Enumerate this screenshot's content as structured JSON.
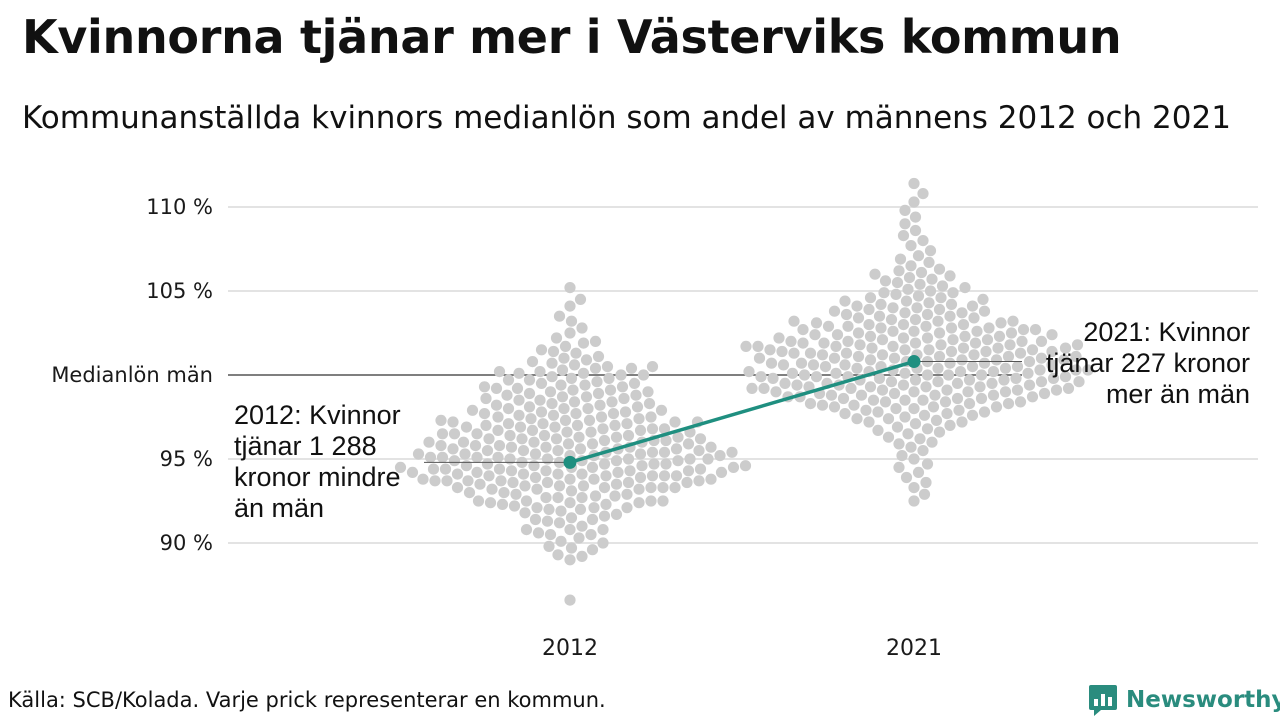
{
  "title": "Kvinnorna tjänar mer i Västerviks kommun",
  "subtitle": "Kommunanställda kvinnors medianlön som andel av männens 2012 och 2021",
  "source": "Källa: SCB/Kolada. Varje prick representerar en kommun.",
  "brand": {
    "name": "Newsworthy",
    "icon": "newsworthy-logo-icon",
    "color": "#2a8c7e"
  },
  "chart_data": {
    "type": "scatter",
    "subtype": "beeswarm",
    "categories": [
      "2012",
      "2021"
    ],
    "y_ticks": [
      {
        "value": 90,
        "label": "90 %"
      },
      {
        "value": 95,
        "label": "95 %"
      },
      {
        "value": 100,
        "label": "Medianlön män"
      },
      {
        "value": 105,
        "label": "105 %"
      },
      {
        "value": 110,
        "label": "110 %"
      }
    ],
    "ylim": [
      85.4,
      111.6
    ],
    "grid": true,
    "reference_line": {
      "value": 100,
      "label": "Medianlön män"
    },
    "dot_color": "#cccccc",
    "highlight_color": "#1f8f80",
    "highlight": [
      {
        "category": "2012",
        "value": 94.8
      },
      {
        "category": "2021",
        "value": 100.8
      }
    ],
    "annotations": [
      {
        "category": "2012",
        "lines": [
          "2012: Kvinnor",
          "tjänar 1 288",
          "kronor mindre",
          "än män"
        ]
      },
      {
        "category": "2021",
        "lines": [
          "2021: Kvinnor",
          "tjänar 227 kronor",
          "mer än män"
        ]
      }
    ],
    "series": [
      {
        "category": "2012",
        "values": [
          86.6,
          89.0,
          89.2,
          89.3,
          89.6,
          89.7,
          89.8,
          90.0,
          90.1,
          90.3,
          90.5,
          90.5,
          90.6,
          90.8,
          90.8,
          90.8,
          91.0,
          91.2,
          91.3,
          91.4,
          91.4,
          91.5,
          91.6,
          91.7,
          91.8,
          91.9,
          92.0,
          92.0,
          92.1,
          92.1,
          92.1,
          92.2,
          92.3,
          92.3,
          92.4,
          92.4,
          92.4,
          92.5,
          92.5,
          92.5,
          92.5,
          92.7,
          92.7,
          92.7,
          92.8,
          92.8,
          92.9,
          92.9,
          93.0,
          93.0,
          93.1,
          93.2,
          93.2,
          93.2,
          93.3,
          93.3,
          93.3,
          93.3,
          93.3,
          93.4,
          93.4,
          93.4,
          93.5,
          93.5,
          93.6,
          93.6,
          93.6,
          93.6,
          93.7,
          93.7,
          93.7,
          93.7,
          93.7,
          93.8,
          93.8,
          93.8,
          93.8,
          93.9,
          93.9,
          94.0,
          94.0,
          94.0,
          94.0,
          94.0,
          94.1,
          94.1,
          94.1,
          94.1,
          94.2,
          94.2,
          94.2,
          94.2,
          94.3,
          94.3,
          94.3,
          94.3,
          94.4,
          94.4,
          94.4,
          94.4,
          94.5,
          94.5,
          94.5,
          94.5,
          94.6,
          94.6,
          94.6,
          94.6,
          94.7,
          94.7,
          94.7,
          94.7,
          94.8,
          94.8,
          94.9,
          94.9,
          94.9,
          94.9,
          95.0,
          95.0,
          95.0,
          95.0,
          95.0,
          95.1,
          95.1,
          95.1,
          95.1,
          95.2,
          95.2,
          95.2,
          95.3,
          95.3,
          95.3,
          95.3,
          95.4,
          95.4,
          95.4,
          95.4,
          95.5,
          95.5,
          95.5,
          95.5,
          95.6,
          95.6,
          95.6,
          95.6,
          95.7,
          95.7,
          95.7,
          95.7,
          95.8,
          95.8,
          95.8,
          95.9,
          95.9,
          95.9,
          96.0,
          96.0,
          96.0,
          96.0,
          96.1,
          96.1,
          96.1,
          96.2,
          96.2,
          96.2,
          96.2,
          96.3,
          96.3,
          96.3,
          96.4,
          96.4,
          96.4,
          96.5,
          96.5,
          96.5,
          96.6,
          96.6,
          96.6,
          96.7,
          96.7,
          96.7,
          96.8,
          96.8,
          96.8,
          96.9,
          96.9,
          96.9,
          97.0,
          97.0,
          97.0,
          97.1,
          97.1,
          97.1,
          97.2,
          97.2,
          97.2,
          97.3,
          97.3,
          97.3,
          97.4,
          97.4,
          97.5,
          97.5,
          97.5,
          97.6,
          97.6,
          97.7,
          97.7,
          97.7,
          97.8,
          97.8,
          97.9,
          97.9,
          98.0,
          98.0,
          98.0,
          98.1,
          98.1,
          98.2,
          98.2,
          98.3,
          98.3,
          98.4,
          98.4,
          98.5,
          98.5,
          98.6,
          98.6,
          98.7,
          98.7,
          98.8,
          98.8,
          98.9,
          98.9,
          99.0,
          99.0,
          99.1,
          99.1,
          99.2,
          99.2,
          99.3,
          99.3,
          99.4,
          99.4,
          99.5,
          99.5,
          99.6,
          99.7,
          99.7,
          99.8,
          99.8,
          99.9,
          100.0,
          100.0,
          100.1,
          100.1,
          100.2,
          100.2,
          100.3,
          100.4,
          100.4,
          100.5,
          100.5,
          100.6,
          100.7,
          100.8,
          100.9,
          101.0,
          101.1,
          101.3,
          101.4,
          101.5,
          101.7,
          101.9,
          102.0,
          102.2,
          102.5,
          102.8,
          103.2,
          103.5,
          104.1,
          104.5,
          105.2
        ]
      },
      {
        "category": "2021",
        "values": [
          92.5,
          92.9,
          93.3,
          93.6,
          93.9,
          94.2,
          94.5,
          94.7,
          95.0,
          95.2,
          95.5,
          95.7,
          95.9,
          96.0,
          96.2,
          96.3,
          96.5,
          96.6,
          96.7,
          96.8,
          96.9,
          97.0,
          97.1,
          97.2,
          97.2,
          97.3,
          97.4,
          97.4,
          97.5,
          97.6,
          97.6,
          97.7,
          97.7,
          97.8,
          97.8,
          97.9,
          97.9,
          98.0,
          98.0,
          98.1,
          98.1,
          98.1,
          98.2,
          98.2,
          98.3,
          98.3,
          98.3,
          98.4,
          98.4,
          98.4,
          98.5,
          98.5,
          98.5,
          98.6,
          98.6,
          98.6,
          98.7,
          98.7,
          98.7,
          98.8,
          98.8,
          98.8,
          98.8,
          98.9,
          98.9,
          98.9,
          99.0,
          99.0,
          99.0,
          99.0,
          99.1,
          99.1,
          99.1,
          99.1,
          99.2,
          99.2,
          99.2,
          99.2,
          99.3,
          99.3,
          99.3,
          99.3,
          99.4,
          99.4,
          99.4,
          99.4,
          99.5,
          99.5,
          99.5,
          99.5,
          99.6,
          99.6,
          99.6,
          99.6,
          99.7,
          99.7,
          99.7,
          99.7,
          99.8,
          99.8,
          99.8,
          99.8,
          99.9,
          99.9,
          99.9,
          99.9,
          100.0,
          100.0,
          100.0,
          100.0,
          100.1,
          100.1,
          100.1,
          100.1,
          100.2,
          100.2,
          100.2,
          100.2,
          100.3,
          100.3,
          100.3,
          100.3,
          100.4,
          100.4,
          100.4,
          100.4,
          100.5,
          100.5,
          100.5,
          100.5,
          100.6,
          100.6,
          100.6,
          100.6,
          100.7,
          100.7,
          100.7,
          100.7,
          100.8,
          100.8,
          100.8,
          100.9,
          100.9,
          100.9,
          100.9,
          101.0,
          101.0,
          101.0,
          101.0,
          101.1,
          101.1,
          101.1,
          101.1,
          101.2,
          101.2,
          101.2,
          101.2,
          101.3,
          101.3,
          101.3,
          101.3,
          101.4,
          101.4,
          101.4,
          101.4,
          101.5,
          101.5,
          101.5,
          101.5,
          101.6,
          101.6,
          101.6,
          101.6,
          101.7,
          101.7,
          101.7,
          101.7,
          101.8,
          101.8,
          101.8,
          101.8,
          101.9,
          101.9,
          101.9,
          101.9,
          102.0,
          102.0,
          102.0,
          102.0,
          102.1,
          102.1,
          102.1,
          102.2,
          102.2,
          102.2,
          102.3,
          102.3,
          102.3,
          102.4,
          102.4,
          102.4,
          102.5,
          102.5,
          102.5,
          102.6,
          102.6,
          102.6,
          102.7,
          102.7,
          102.7,
          102.8,
          102.8,
          102.8,
          102.9,
          102.9,
          102.9,
          103.0,
          103.0,
          103.0,
          103.1,
          103.1,
          103.2,
          103.2,
          103.2,
          103.3,
          103.3,
          103.4,
          103.4,
          103.5,
          103.5,
          103.6,
          103.6,
          103.7,
          103.7,
          103.8,
          103.8,
          103.9,
          103.9,
          104.0,
          104.0,
          104.1,
          104.1,
          104.2,
          104.2,
          104.3,
          104.4,
          104.4,
          104.5,
          104.6,
          104.6,
          104.7,
          104.8,
          104.9,
          104.9,
          105.0,
          105.1,
          105.2,
          105.3,
          105.4,
          105.5,
          105.6,
          105.7,
          105.8,
          105.9,
          106.0,
          106.1,
          106.2,
          106.3,
          106.5,
          106.7,
          106.9,
          107.1,
          107.4,
          107.7,
          108.0,
          108.3,
          108.6,
          109.0,
          109.4,
          109.8,
          110.3,
          110.8,
          111.4
        ]
      }
    ]
  }
}
